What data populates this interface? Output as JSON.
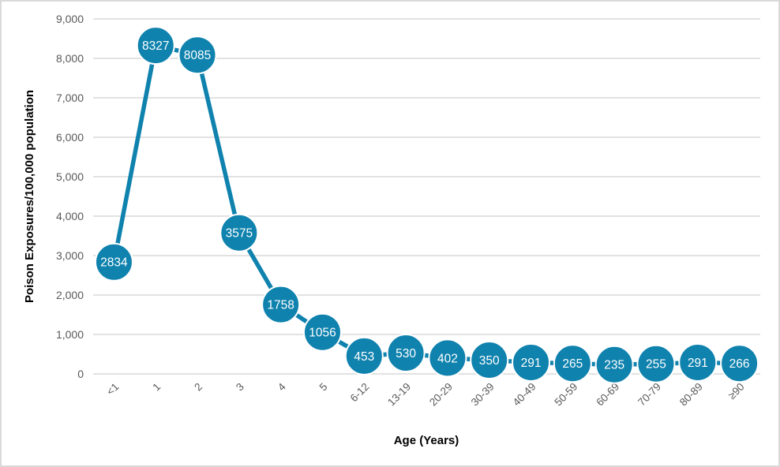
{
  "frame": {
    "background": "#ffffff",
    "border_color": "#d9d9d9"
  },
  "chart_data": {
    "type": "line",
    "title": "",
    "xlabel": "Age (Years)",
    "ylabel": "Poison Exposures/100,000 population",
    "categories": [
      "<1",
      "1",
      "2",
      "3",
      "4",
      "5",
      "6-12",
      "13-19",
      "20-29",
      "30-39",
      "40-49",
      "50-59",
      "60-69",
      "70-79",
      "80-89",
      "≥90"
    ],
    "values": [
      2834,
      8327,
      8085,
      3575,
      1758,
      1056,
      453,
      530,
      402,
      350,
      291,
      265,
      235,
      255,
      291,
      266
    ],
    "ylim": [
      0,
      9000
    ],
    "ytick_step": 1000,
    "grid": true,
    "legend_position": "none",
    "series_color": "#0f82ae",
    "marker_border_color": "#ffffff",
    "marker_label_color": "#ffffff",
    "gridline_color": "#d9d9d9",
    "tick_label_color": "#595959",
    "axis_title_color": "#595959",
    "x_tick_rotation_deg": -45
  }
}
